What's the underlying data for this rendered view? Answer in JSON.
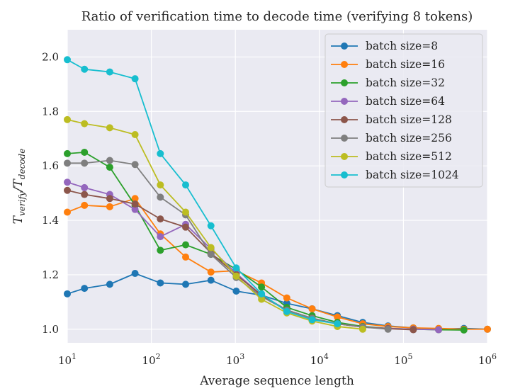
{
  "chart_data": {
    "type": "line",
    "title": "Ratio of verification time to decode time (verifying 8 tokens)",
    "xlabel": "Average sequence length",
    "ylabel": "T_verify / T_decode",
    "ylabel_parts": {
      "base": "T",
      "sub1": "verify",
      "sep": "/",
      "base2": "T",
      "sub2": "decode"
    },
    "xscale": "log",
    "xlim": [
      10,
      1000000
    ],
    "ylim": [
      0.95,
      2.1
    ],
    "xticks": [
      {
        "value": 10,
        "base": "10",
        "exp": "1"
      },
      {
        "value": 100,
        "base": "10",
        "exp": "2"
      },
      {
        "value": 1000,
        "base": "10",
        "exp": "3"
      },
      {
        "value": 10000,
        "base": "10",
        "exp": "4"
      },
      {
        "value": 100000,
        "base": "10",
        "exp": "5"
      },
      {
        "value": 1000000,
        "base": "10",
        "exp": "6"
      }
    ],
    "yticks": [
      {
        "value": 1.0,
        "label": "1.0"
      },
      {
        "value": 1.2,
        "label": "1.2"
      },
      {
        "value": 1.4,
        "label": "1.4"
      },
      {
        "value": 1.6,
        "label": "1.6"
      },
      {
        "value": 1.8,
        "label": "1.8"
      },
      {
        "value": 2.0,
        "label": "2.0"
      }
    ],
    "grid": true,
    "legend_position": "top-right",
    "series": [
      {
        "name": "batch size=8",
        "color": "#1f77b4",
        "x": [
          10,
          16,
          32,
          64,
          128,
          256,
          512,
          1024,
          2048,
          4096,
          8192,
          16384,
          32768,
          65536,
          131072,
          262144,
          524288,
          1000000
        ],
        "y": [
          1.13,
          1.15,
          1.165,
          1.205,
          1.17,
          1.165,
          1.18,
          1.14,
          1.125,
          1.095,
          1.075,
          1.05,
          1.025,
          1.012,
          1.005,
          1.0,
          1.003,
          1.0
        ]
      },
      {
        "name": "batch size=16",
        "color": "#ff7f0e",
        "x": [
          10,
          16,
          32,
          64,
          128,
          256,
          512,
          1024,
          2048,
          4096,
          8192,
          16384,
          32768,
          65536,
          131072,
          262144,
          524288,
          1000000
        ],
        "y": [
          1.43,
          1.455,
          1.45,
          1.48,
          1.35,
          1.265,
          1.21,
          1.215,
          1.17,
          1.115,
          1.075,
          1.045,
          1.02,
          1.01,
          1.005,
          1.003,
          1.0,
          1.0
        ]
      },
      {
        "name": "batch size=32",
        "color": "#2ca02c",
        "x": [
          10,
          16,
          32,
          64,
          128,
          256,
          512,
          1024,
          2048,
          4096,
          8192,
          16384,
          32768,
          65536,
          131072,
          262144,
          524288
        ],
        "y": [
          1.645,
          1.65,
          1.595,
          1.455,
          1.29,
          1.31,
          1.275,
          1.22,
          1.155,
          1.08,
          1.05,
          1.025,
          1.01,
          1.003,
          1.0,
          0.998,
          0.997
        ]
      },
      {
        "name": "batch size=64",
        "color": "#9467bd",
        "x": [
          10,
          16,
          32,
          64,
          128,
          256,
          512,
          1024,
          2048,
          4096,
          8192,
          16384,
          32768,
          65536,
          131072,
          262144
        ],
        "y": [
          1.54,
          1.52,
          1.495,
          1.44,
          1.34,
          1.385,
          1.295,
          1.205,
          1.125,
          1.07,
          1.04,
          1.02,
          1.008,
          1.003,
          1.0,
          0.998
        ]
      },
      {
        "name": "batch size=128",
        "color": "#8c564b",
        "x": [
          10,
          16,
          32,
          64,
          128,
          256,
          512,
          1024,
          2048,
          4096,
          8192,
          16384,
          32768,
          65536,
          131072
        ],
        "y": [
          1.51,
          1.495,
          1.48,
          1.46,
          1.405,
          1.375,
          1.28,
          1.2,
          1.125,
          1.07,
          1.04,
          1.02,
          1.008,
          1.002,
          0.998
        ]
      },
      {
        "name": "batch size=256",
        "color": "#7f7f7f",
        "x": [
          10,
          16,
          32,
          64,
          128,
          256,
          512,
          1024,
          2048,
          4096,
          8192,
          16384,
          32768,
          65536
        ],
        "y": [
          1.61,
          1.61,
          1.62,
          1.605,
          1.485,
          1.42,
          1.275,
          1.19,
          1.12,
          1.07,
          1.04,
          1.02,
          1.008,
          1.0
        ]
      },
      {
        "name": "batch size=512",
        "color": "#bcbd22",
        "x": [
          10,
          16,
          32,
          64,
          128,
          256,
          512,
          1024,
          2048,
          4096,
          8192,
          16384,
          32768
        ],
        "y": [
          1.77,
          1.755,
          1.74,
          1.715,
          1.53,
          1.43,
          1.3,
          1.195,
          1.11,
          1.06,
          1.03,
          1.01,
          1.0
        ]
      },
      {
        "name": "batch size=1024",
        "color": "#17becf",
        "x": [
          10,
          16,
          32,
          64,
          128,
          256,
          512,
          1024,
          2048,
          4096,
          8192,
          16384
        ],
        "y": [
          1.99,
          1.955,
          1.945,
          1.92,
          1.645,
          1.53,
          1.38,
          1.225,
          1.13,
          1.065,
          1.035,
          1.02
        ]
      }
    ]
  }
}
